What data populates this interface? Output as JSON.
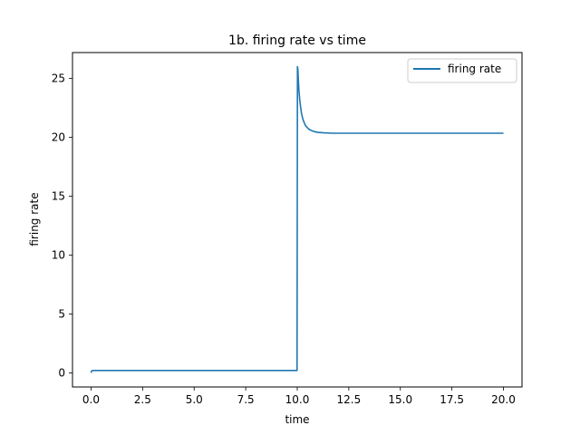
{
  "chart_data": {
    "type": "line",
    "title": "1b. firing rate vs time",
    "xlabel": "time",
    "ylabel": "firing rate",
    "xlim": [
      -0.9,
      20.9
    ],
    "ylim": [
      -1.2,
      27.2
    ],
    "xticks": [
      0.0,
      2.5,
      5.0,
      7.5,
      10.0,
      12.5,
      15.0,
      17.5,
      20.0
    ],
    "xtick_labels": [
      "0.0",
      "2.5",
      "5.0",
      "7.5",
      "10.0",
      "12.5",
      "15.0",
      "17.5",
      "20.0"
    ],
    "yticks": [
      0,
      5,
      10,
      15,
      20,
      25
    ],
    "ytick_labels": [
      "0",
      "5",
      "10",
      "15",
      "20",
      "25"
    ],
    "grid": false,
    "legend": {
      "position": "top-right",
      "entries": [
        "firing rate"
      ]
    },
    "series": [
      {
        "name": "firing rate",
        "color": "#1f77b4",
        "x": [
          0.0,
          0.02,
          0.05,
          0.1,
          0.2,
          1.0,
          3.0,
          5.0,
          7.0,
          9.0,
          9.99,
          10.0,
          10.01,
          10.03,
          10.05,
          10.08,
          10.12,
          10.16,
          10.2,
          10.25,
          10.3,
          10.4,
          10.5,
          10.6,
          10.8,
          11.0,
          11.3,
          11.7,
          12.5,
          15.0,
          17.5,
          20.0
        ],
        "y": [
          0.0,
          0.12,
          0.18,
          0.2,
          0.2,
          0.2,
          0.2,
          0.2,
          0.2,
          0.2,
          0.2,
          13.0,
          26.0,
          25.8,
          25.0,
          24.0,
          23.2,
          22.6,
          22.1,
          21.7,
          21.4,
          21.0,
          20.8,
          20.65,
          20.5,
          20.42,
          20.38,
          20.35,
          20.35,
          20.35,
          20.35,
          20.35
        ]
      }
    ]
  },
  "colors": {
    "axes": "#000000",
    "line": "#1f77b4",
    "legend_border": "#cccccc"
  }
}
